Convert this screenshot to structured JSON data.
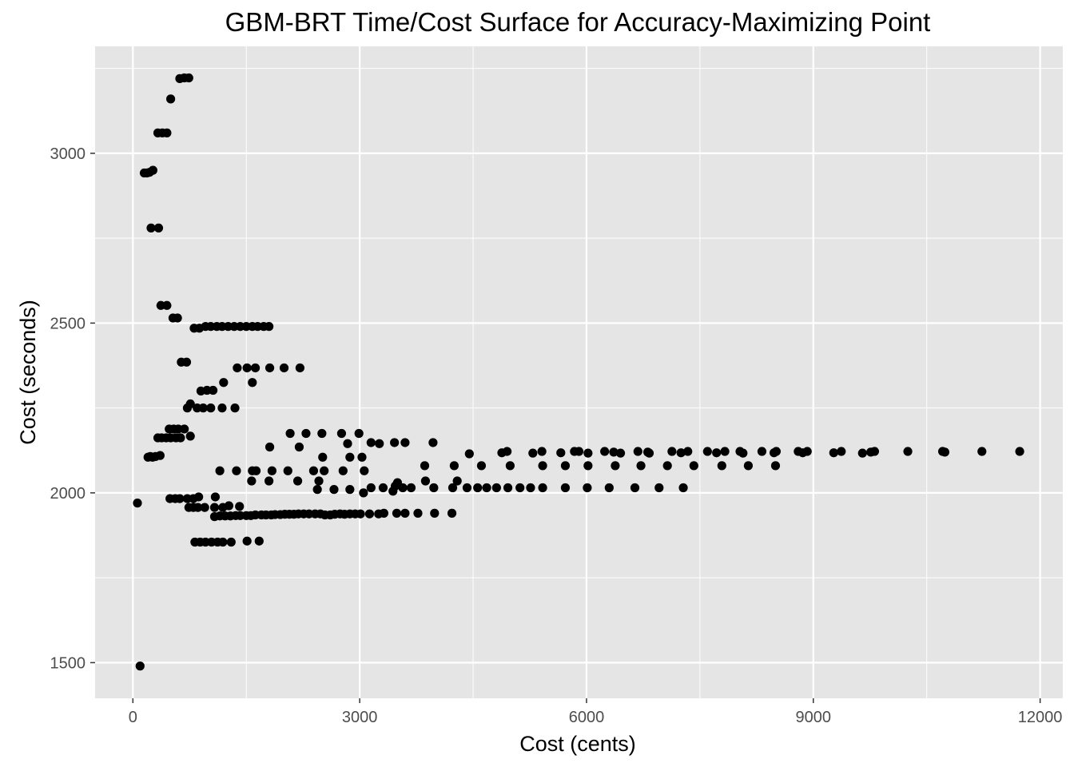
{
  "chart_data": {
    "type": "scatter",
    "title": "GBM-BRT Time/Cost Surface for Accuracy-Maximizing Point",
    "xlabel": "Cost (cents)",
    "ylabel": "Cost (seconds)",
    "xlim": [
      -500,
      12300
    ],
    "ylim": [
      1395,
      3315
    ],
    "x_ticks": [
      0,
      3000,
      6000,
      9000,
      12000
    ],
    "y_ticks": [
      1500,
      2000,
      2500,
      3000
    ],
    "x_tick_labels": [
      "0",
      "3000",
      "6000",
      "9000",
      "12000"
    ],
    "y_tick_labels": [
      "1500",
      "2000",
      "2500",
      "3000"
    ],
    "x_minor": [
      1500,
      4500,
      7500,
      10500
    ],
    "y_minor": [
      1750,
      2250,
      2750,
      3250
    ],
    "grid": true,
    "legend": "none",
    "colors": {
      "panel": "#e5e5e5",
      "grid": "#ffffff",
      "point": "#000000"
    },
    "points": [
      [
        60,
        1970
      ],
      [
        95,
        1490
      ],
      [
        150,
        2942
      ],
      [
        185,
        2942
      ],
      [
        220,
        2944
      ],
      [
        265,
        2950
      ],
      [
        200,
        2105
      ],
      [
        230,
        2107
      ],
      [
        260,
        2105
      ],
      [
        300,
        2107
      ],
      [
        360,
        2110
      ],
      [
        240,
        2780
      ],
      [
        340,
        2780
      ],
      [
        330,
        3060
      ],
      [
        390,
        3060
      ],
      [
        450,
        3060
      ],
      [
        370,
        2552
      ],
      [
        450,
        2552
      ],
      [
        330,
        2162
      ],
      [
        380,
        2162
      ],
      [
        440,
        2162
      ],
      [
        500,
        2162
      ],
      [
        570,
        2162
      ],
      [
        630,
        2162
      ],
      [
        480,
        2188
      ],
      [
        540,
        2188
      ],
      [
        600,
        2188
      ],
      [
        680,
        2188
      ],
      [
        530,
        2515
      ],
      [
        590,
        2515
      ],
      [
        500,
        3160
      ],
      [
        620,
        3220
      ],
      [
        680,
        3222
      ],
      [
        740,
        3222
      ],
      [
        640,
        2385
      ],
      [
        710,
        2385
      ],
      [
        490,
        1983
      ],
      [
        560,
        1983
      ],
      [
        620,
        1983
      ],
      [
        720,
        1983
      ],
      [
        800,
        1983
      ],
      [
        870,
        1988
      ],
      [
        720,
        2250
      ],
      [
        760,
        2262
      ],
      [
        850,
        2250
      ],
      [
        930,
        2250
      ],
      [
        1030,
        2250
      ],
      [
        1180,
        2250
      ],
      [
        1350,
        2250
      ],
      [
        740,
        1957
      ],
      [
        800,
        1957
      ],
      [
        860,
        1957
      ],
      [
        950,
        1957
      ],
      [
        1080,
        1957
      ],
      [
        1190,
        1957
      ],
      [
        1270,
        1962
      ],
      [
        1410,
        1960
      ],
      [
        760,
        2167
      ],
      [
        810,
        2485
      ],
      [
        880,
        2485
      ],
      [
        960,
        2490
      ],
      [
        1030,
        2490
      ],
      [
        1110,
        2490
      ],
      [
        1180,
        2490
      ],
      [
        1260,
        2490
      ],
      [
        1340,
        2490
      ],
      [
        1420,
        2490
      ],
      [
        1500,
        2490
      ],
      [
        1580,
        2490
      ],
      [
        1650,
        2490
      ],
      [
        1730,
        2490
      ],
      [
        1800,
        2490
      ],
      [
        900,
        2300
      ],
      [
        980,
        2302
      ],
      [
        1060,
        2302
      ],
      [
        820,
        1855
      ],
      [
        890,
        1855
      ],
      [
        960,
        1855
      ],
      [
        1040,
        1855
      ],
      [
        1120,
        1855
      ],
      [
        1190,
        1855
      ],
      [
        1300,
        1855
      ],
      [
        1510,
        1858
      ],
      [
        1670,
        1858
      ],
      [
        1080,
        1930
      ],
      [
        1150,
        1932
      ],
      [
        1220,
        1932
      ],
      [
        1290,
        1932
      ],
      [
        1360,
        1933
      ],
      [
        1420,
        1933
      ],
      [
        1500,
        1933
      ],
      [
        1560,
        1933
      ],
      [
        1620,
        1935
      ],
      [
        1700,
        1935
      ],
      [
        1760,
        1935
      ],
      [
        1830,
        1935
      ],
      [
        1880,
        1936
      ],
      [
        1950,
        1936
      ],
      [
        2010,
        1937
      ],
      [
        2070,
        1937
      ],
      [
        2130,
        1937
      ],
      [
        2190,
        1938
      ],
      [
        2260,
        1938
      ],
      [
        2330,
        1938
      ],
      [
        2410,
        1938
      ],
      [
        2480,
        1938
      ],
      [
        2540,
        1935
      ],
      [
        2610,
        1935
      ],
      [
        2670,
        1937
      ],
      [
        2740,
        1938
      ],
      [
        2800,
        1937
      ],
      [
        2870,
        1938
      ],
      [
        2940,
        1938
      ],
      [
        3010,
        1938
      ],
      [
        3130,
        1938
      ],
      [
        3250,
        1938
      ],
      [
        3320,
        1940
      ],
      [
        3490,
        1940
      ],
      [
        3600,
        1940
      ],
      [
        3770,
        1940
      ],
      [
        3990,
        1940
      ],
      [
        4220,
        1940
      ],
      [
        1090,
        1988
      ],
      [
        1150,
        2065
      ],
      [
        1370,
        2065
      ],
      [
        1580,
        2065
      ],
      [
        1630,
        2065
      ],
      [
        1840,
        2065
      ],
      [
        2050,
        2065
      ],
      [
        2390,
        2065
      ],
      [
        2530,
        2065
      ],
      [
        2780,
        2065
      ],
      [
        3060,
        2065
      ],
      [
        1200,
        2325
      ],
      [
        1380,
        2368
      ],
      [
        1510,
        2368
      ],
      [
        1620,
        2368
      ],
      [
        1810,
        2368
      ],
      [
        2000,
        2368
      ],
      [
        2210,
        2368
      ],
      [
        1580,
        2325
      ],
      [
        1570,
        2035
      ],
      [
        1800,
        2035
      ],
      [
        2180,
        2035
      ],
      [
        2460,
        2035
      ],
      [
        1810,
        2135
      ],
      [
        2200,
        2135
      ],
      [
        2510,
        2105
      ],
      [
        2870,
        2105
      ],
      [
        3030,
        2105
      ],
      [
        2080,
        2175
      ],
      [
        2290,
        2175
      ],
      [
        2500,
        2175
      ],
      [
        2760,
        2175
      ],
      [
        2990,
        2175
      ],
      [
        3150,
        2148
      ],
      [
        3260,
        2145
      ],
      [
        3460,
        2148
      ],
      [
        3600,
        2148
      ],
      [
        3970,
        2148
      ],
      [
        2840,
        2145
      ],
      [
        2440,
        2010
      ],
      [
        2660,
        2010
      ],
      [
        2870,
        2010
      ],
      [
        3050,
        2000
      ],
      [
        3150,
        2015
      ],
      [
        3310,
        2015
      ],
      [
        3440,
        2005
      ],
      [
        3570,
        2015
      ],
      [
        3680,
        2015
      ],
      [
        3870,
        2035
      ],
      [
        3980,
        2015
      ],
      [
        4230,
        2015
      ],
      [
        4290,
        2035
      ],
      [
        4420,
        2015
      ],
      [
        4560,
        2015
      ],
      [
        4680,
        2015
      ],
      [
        4810,
        2015
      ],
      [
        4960,
        2015
      ],
      [
        5120,
        2015
      ],
      [
        5260,
        2015
      ],
      [
        5420,
        2015
      ],
      [
        5720,
        2015
      ],
      [
        6010,
        2015
      ],
      [
        6300,
        2015
      ],
      [
        6640,
        2015
      ],
      [
        6960,
        2015
      ],
      [
        7280,
        2015
      ],
      [
        3470,
        2020
      ],
      [
        3500,
        2030
      ],
      [
        3860,
        2080
      ],
      [
        4250,
        2080
      ],
      [
        4610,
        2080
      ],
      [
        4990,
        2080
      ],
      [
        5420,
        2080
      ],
      [
        5720,
        2080
      ],
      [
        6020,
        2080
      ],
      [
        6380,
        2080
      ],
      [
        6720,
        2080
      ],
      [
        7070,
        2080
      ],
      [
        7420,
        2080
      ],
      [
        7790,
        2080
      ],
      [
        8140,
        2080
      ],
      [
        8500,
        2080
      ],
      [
        4450,
        2115
      ],
      [
        4880,
        2118
      ],
      [
        4950,
        2122
      ],
      [
        5290,
        2117
      ],
      [
        5410,
        2122
      ],
      [
        5660,
        2118
      ],
      [
        5840,
        2122
      ],
      [
        5900,
        2122
      ],
      [
        6020,
        2117
      ],
      [
        6240,
        2122
      ],
      [
        6360,
        2120
      ],
      [
        6450,
        2117
      ],
      [
        6680,
        2122
      ],
      [
        6810,
        2120
      ],
      [
        6830,
        2117
      ],
      [
        7130,
        2122
      ],
      [
        7250,
        2118
      ],
      [
        7340,
        2122
      ],
      [
        7600,
        2122
      ],
      [
        7720,
        2118
      ],
      [
        7830,
        2122
      ],
      [
        8030,
        2122
      ],
      [
        8070,
        2117
      ],
      [
        8320,
        2122
      ],
      [
        8480,
        2118
      ],
      [
        8510,
        2122
      ],
      [
        8800,
        2122
      ],
      [
        8860,
        2118
      ],
      [
        8920,
        2122
      ],
      [
        9270,
        2118
      ],
      [
        9370,
        2122
      ],
      [
        9650,
        2117
      ],
      [
        9760,
        2120
      ],
      [
        9810,
        2122
      ],
      [
        10250,
        2122
      ],
      [
        10710,
        2122
      ],
      [
        10740,
        2120
      ],
      [
        11230,
        2122
      ],
      [
        11730,
        2122
      ]
    ]
  }
}
